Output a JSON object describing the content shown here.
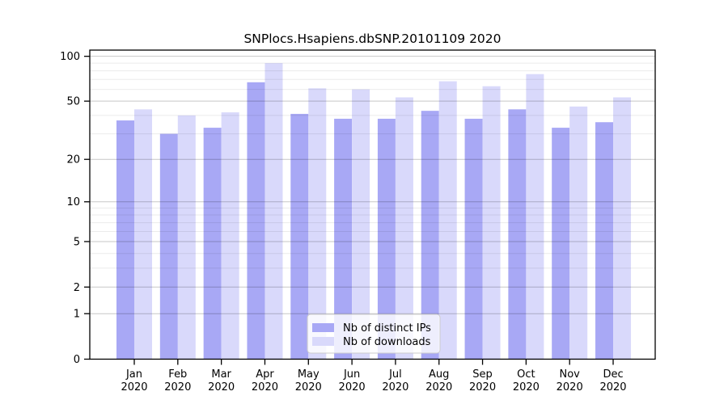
{
  "page": {
    "background": "#ffffff"
  },
  "chart_data": {
    "type": "bar",
    "title": "SNPlocs.Hsapiens.dbSNP.20101109 2020",
    "categories": [
      "Jan",
      "Feb",
      "Mar",
      "Apr",
      "May",
      "Jun",
      "Jul",
      "Aug",
      "Sep",
      "Oct",
      "Nov",
      "Dec"
    ],
    "category_year": "2020",
    "series": [
      {
        "name": "Nb of distinct IPs",
        "color": "#a8a8f5",
        "values": [
          37,
          30,
          33,
          67,
          41,
          38,
          38,
          43,
          38,
          44,
          33,
          36
        ]
      },
      {
        "name": "Nb of downloads",
        "color": "#d9d9fb",
        "values": [
          44,
          40,
          42,
          90,
          61,
          60,
          53,
          68,
          63,
          76,
          46,
          53
        ]
      }
    ],
    "yscale": "log1p",
    "ylim": [
      0,
      110
    ],
    "yticks": [
      100,
      50,
      20,
      10,
      5,
      2,
      1,
      0
    ],
    "yticks_minor": [
      90,
      80,
      70,
      60,
      40,
      30,
      9,
      8,
      7,
      6,
      4,
      3
    ],
    "grid": true,
    "grid_major_color": "rgba(0,0,0,0.22)",
    "grid_minor_color": "rgba(0,0,0,0.08)",
    "legend_position": "lower-center",
    "xlabel": "",
    "ylabel": ""
  }
}
